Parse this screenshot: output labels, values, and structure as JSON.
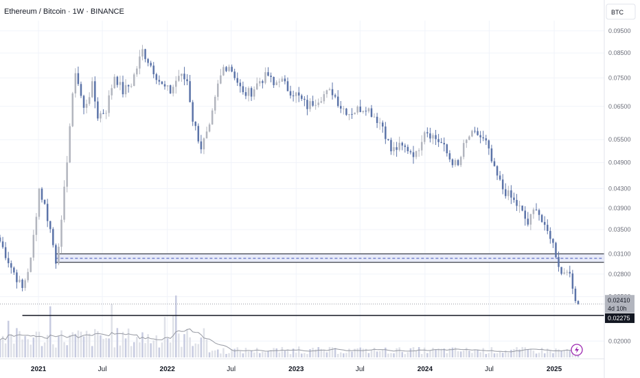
{
  "header": {
    "title": "Ethereum / Bitcoin · 1W · BINANCE",
    "unit": "BTC"
  },
  "chart_data": {
    "type": "candlestick",
    "title": "Ethereum / Bitcoin · 1W · BINANCE",
    "y_axis": {
      "scale": "log",
      "ticks": [
        "0.09500",
        "0.08500",
        "0.07500",
        "0.06500",
        "0.05500",
        "0.04900",
        "0.04300",
        "0.03900",
        "0.03500",
        "0.03100",
        "0.02800",
        "0.02500",
        "0.02000"
      ],
      "tick_values": [
        0.095,
        0.085,
        0.075,
        0.065,
        0.055,
        0.049,
        0.043,
        0.039,
        0.035,
        0.031,
        0.028,
        0.025,
        0.02
      ],
      "range": [
        0.0183,
        0.1
      ]
    },
    "x_axis": {
      "ticks": [
        {
          "label": "2021",
          "date": "2021-01-01",
          "bold": true
        },
        {
          "label": "Jul",
          "date": "2021-07-01",
          "bold": false
        },
        {
          "label": "2022",
          "date": "2022-01-01",
          "bold": true
        },
        {
          "label": "Jul",
          "date": "2022-07-01",
          "bold": false
        },
        {
          "label": "2023",
          "date": "2023-01-01",
          "bold": true
        },
        {
          "label": "Jul",
          "date": "2023-07-01",
          "bold": false
        },
        {
          "label": "2024",
          "date": "2024-01-01",
          "bold": true
        },
        {
          "label": "Jul",
          "date": "2024-07-01",
          "bold": false
        },
        {
          "label": "2025",
          "date": "2025-01-01",
          "bold": true
        }
      ]
    },
    "last_price": {
      "value": "0.02410",
      "countdown": "4d 10h",
      "price": 0.0241
    },
    "support_level": {
      "value": "0.02275",
      "price": 0.02275
    },
    "zone": {
      "upper": 0.031,
      "lower": 0.0297,
      "mid": 0.0303
    },
    "colors": {
      "up": "#b2b5be",
      "down": "#5b73a8",
      "grid": "#f0f3fa",
      "volume_ma": "#9598a1",
      "zone_fill": "#e8ebf8",
      "zone_border": "#131722",
      "dashed": "#3d4fb8"
    },
    "series_anchors": [
      [
        0,
        0.033
      ],
      [
        4,
        0.029
      ],
      [
        8,
        0.026
      ],
      [
        11,
        0.03
      ],
      [
        14,
        0.043
      ],
      [
        16,
        0.0395
      ],
      [
        18,
        0.035
      ],
      [
        20,
        0.03
      ],
      [
        22,
        0.036
      ],
      [
        24,
        0.05
      ],
      [
        25,
        0.059
      ],
      [
        27,
        0.078
      ],
      [
        30,
        0.064
      ],
      [
        33,
        0.072
      ],
      [
        35,
        0.062
      ],
      [
        38,
        0.064
      ],
      [
        41,
        0.076
      ],
      [
        44,
        0.07
      ],
      [
        47,
        0.073
      ],
      [
        49,
        0.079
      ],
      [
        51,
        0.086
      ],
      [
        53,
        0.082
      ],
      [
        55,
        0.078
      ],
      [
        58,
        0.072
      ],
      [
        61,
        0.07
      ],
      [
        64,
        0.076
      ],
      [
        67,
        0.074
      ],
      [
        69,
        0.061
      ],
      [
        72,
        0.053
      ],
      [
        75,
        0.058
      ],
      [
        78,
        0.072
      ],
      [
        80,
        0.079
      ],
      [
        82,
        0.08
      ],
      [
        84,
        0.076
      ],
      [
        87,
        0.069
      ],
      [
        90,
        0.07
      ],
      [
        93,
        0.074
      ],
      [
        96,
        0.076
      ],
      [
        98,
        0.072
      ],
      [
        100,
        0.075
      ],
      [
        103,
        0.071
      ],
      [
        106,
        0.069
      ],
      [
        110,
        0.065
      ],
      [
        113,
        0.067
      ],
      [
        116,
        0.069
      ],
      [
        119,
        0.07
      ],
      [
        122,
        0.065
      ],
      [
        125,
        0.063
      ],
      [
        128,
        0.064
      ],
      [
        131,
        0.065
      ],
      [
        134,
        0.062
      ],
      [
        137,
        0.059
      ],
      [
        140,
        0.052
      ],
      [
        143,
        0.053
      ],
      [
        146,
        0.0525
      ],
      [
        149,
        0.051
      ],
      [
        152,
        0.058
      ],
      [
        155,
        0.056
      ],
      [
        158,
        0.054
      ],
      [
        161,
        0.05
      ],
      [
        164,
        0.048
      ],
      [
        166,
        0.053
      ],
      [
        168,
        0.056
      ],
      [
        171,
        0.0565
      ],
      [
        174,
        0.054
      ],
      [
        177,
        0.047
      ],
      [
        180,
        0.043
      ],
      [
        183,
        0.041
      ],
      [
        186,
        0.039
      ],
      [
        189,
        0.036
      ],
      [
        192,
        0.0395
      ],
      [
        195,
        0.035
      ],
      [
        197,
        0.034
      ],
      [
        199,
        0.031
      ],
      [
        201,
        0.028
      ],
      [
        203,
        0.029
      ],
      [
        205,
        0.026
      ],
      [
        207,
        0.0241
      ]
    ],
    "n_bars": 208
  }
}
